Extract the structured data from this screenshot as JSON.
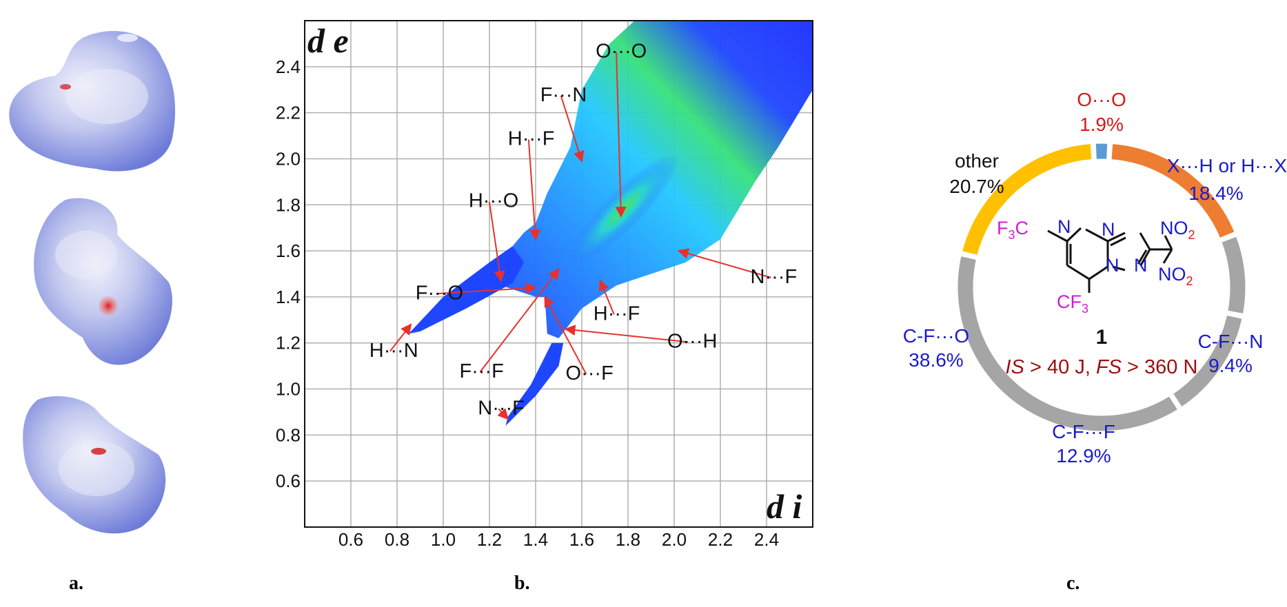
{
  "panel_labels": {
    "a": "a.",
    "b": "b.",
    "c": "c."
  },
  "colors": {
    "surface_fill": "#9aa6e6",
    "surface_highlight": "#eef0fb",
    "surface_red": "#d22222",
    "arrow": "#e8302c",
    "donut_gap_text": "#1a1acc",
    "donut_title_text": "#d41a1a",
    "compound_label": "#9b1010",
    "magenta": "#d41ad4"
  },
  "chart_data": [
    {
      "type": "heatmap",
      "title": "",
      "xlabel": "d i",
      "ylabel": "d e",
      "xlim": [
        0.4,
        2.6
      ],
      "ylim": [
        0.4,
        2.6
      ],
      "x_ticks": [
        "0.6",
        "0.8",
        "1.0",
        "1.2",
        "1.4",
        "1.6",
        "1.8",
        "2.0",
        "2.2",
        "2.4"
      ],
      "y_ticks": [
        "0.6",
        "0.8",
        "1.0",
        "1.2",
        "1.4",
        "1.6",
        "1.8",
        "2.0",
        "2.2",
        "2.4"
      ],
      "grid": true,
      "annotations": [
        {
          "text": "O···O",
          "label_at": [
            1.66,
            2.44
          ],
          "points_to": [
            1.77,
            1.75
          ]
        },
        {
          "text": "F···N",
          "label_at": [
            1.42,
            2.25
          ],
          "points_to": [
            1.6,
            1.99
          ]
        },
        {
          "text": "H···F",
          "label_at": [
            1.28,
            2.06
          ],
          "points_to": [
            1.4,
            1.65
          ]
        },
        {
          "text": "H···O",
          "label_at": [
            1.11,
            1.79
          ],
          "points_to": [
            1.25,
            1.47
          ]
        },
        {
          "text": "F···O",
          "label_at": [
            0.88,
            1.39
          ],
          "points_to": [
            1.4,
            1.44
          ]
        },
        {
          "text": "H···N",
          "label_at": [
            0.68,
            1.14
          ],
          "points_to": [
            0.86,
            1.28
          ]
        },
        {
          "text": "F···F",
          "label_at": [
            1.07,
            1.05
          ],
          "points_to": [
            1.5,
            1.52
          ]
        },
        {
          "text": "N···F",
          "label_at": [
            1.15,
            0.89
          ],
          "points_to": [
            1.28,
            0.87
          ]
        },
        {
          "text": "O···F",
          "label_at": [
            1.53,
            1.04
          ],
          "points_to": [
            1.44,
            1.4
          ]
        },
        {
          "text": "O···H",
          "label_at": [
            1.97,
            1.18
          ],
          "points_to": [
            1.53,
            1.26
          ]
        },
        {
          "text": "H···F",
          "label_at": [
            1.65,
            1.3
          ],
          "points_to": [
            1.68,
            1.47
          ]
        },
        {
          "text": "N···F",
          "label_at": [
            2.33,
            1.46
          ],
          "points_to": [
            2.02,
            1.6
          ]
        }
      ]
    },
    {
      "type": "pie",
      "title": "",
      "series": [
        {
          "name": "O···O",
          "pct_label": "1.9%",
          "value": 1.9,
          "color": "#5b9bd5",
          "text_color": "#d41a1a"
        },
        {
          "name": "X···H or H···X",
          "pct_label": "18.4%",
          "value": 18.4,
          "color": "#ed7d31",
          "text_color": "#1a1acc"
        },
        {
          "name": "C-F···N",
          "pct_label": "9.4%",
          "value": 9.4,
          "color": "#a5a5a5",
          "text_color": "#1a1acc"
        },
        {
          "name": "C-F···F",
          "pct_label": "12.9%",
          "value": 12.9,
          "color": "#a5a5a5",
          "text_color": "#1a1acc"
        },
        {
          "name": "C-F···O",
          "pct_label": "38.6%",
          "value": 38.6,
          "color": "#a5a5a5",
          "text_color": "#1a1acc"
        },
        {
          "name": "other",
          "pct_label": "20.7%",
          "value": 20.7,
          "color": "#ffc000",
          "text_color": "#111111"
        }
      ],
      "compound": {
        "number": "1",
        "is_label": "IS",
        "is_value": " > 40 J, ",
        "fs_label": "FS",
        "fs_value": " > 360 N",
        "atoms": {
          "f3c": "F3C",
          "cf3": "CF3",
          "no2": "NO2",
          "n": "N"
        }
      }
    }
  ]
}
